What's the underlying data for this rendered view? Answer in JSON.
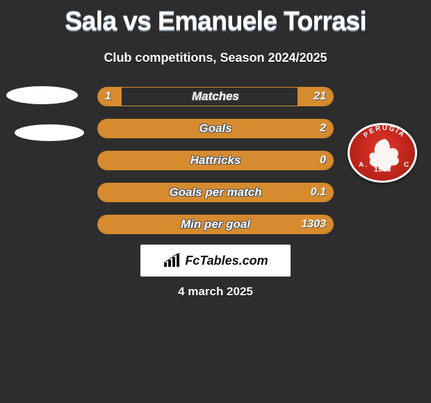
{
  "title": "Sala vs Emanuele Torrasi",
  "subtitle": "Club competitions, Season 2024/2025",
  "background_color": "#2d2d2d",
  "bar_color": "#d68b2e",
  "text_color": "#ffffff",
  "rows": [
    {
      "label": "Matches",
      "left_val": "1",
      "right_val": "21",
      "left_pct": 10,
      "right_pct": 15
    },
    {
      "label": "Goals",
      "left_val": "",
      "right_val": "2",
      "left_pct": 0,
      "right_pct": 100
    },
    {
      "label": "Hattricks",
      "left_val": "",
      "right_val": "0",
      "left_pct": 0,
      "right_pct": 100
    },
    {
      "label": "Goals per match",
      "left_val": "",
      "right_val": "0.1",
      "left_pct": 0,
      "right_pct": 100
    },
    {
      "label": "Min per goal",
      "left_val": "",
      "right_val": "1303",
      "left_pct": 0,
      "right_pct": 100
    }
  ],
  "crest": {
    "top_text": "PERUGIA",
    "side_text": "A.C.",
    "year": "1905"
  },
  "brand": "FcTables.com",
  "date": "4 march 2025"
}
